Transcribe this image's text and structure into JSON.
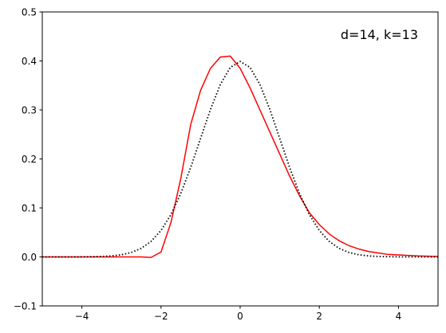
{
  "chart_data": {
    "type": "line",
    "annotation": "d=14, k=13",
    "x": [
      -5,
      -4.75,
      -4.5,
      -4.25,
      -4,
      -3.75,
      -3.5,
      -3.25,
      -3,
      -2.75,
      -2.5,
      -2.25,
      -2,
      -1.75,
      -1.5,
      -1.25,
      -1,
      -0.75,
      -0.5,
      -0.25,
      0,
      0.25,
      0.5,
      0.75,
      1,
      1.25,
      1.5,
      1.75,
      2,
      2.25,
      2.5,
      2.75,
      3,
      3.25,
      3.5,
      3.75,
      4,
      4.25,
      4.5,
      4.75,
      5
    ],
    "series": [
      {
        "color": "#ff0000",
        "style": "solid",
        "values": [
          0,
          0,
          0,
          0,
          0,
          0,
          0,
          0,
          0,
          0,
          0,
          -0.001,
          0.01,
          0.07,
          0.16,
          0.27,
          0.34,
          0.385,
          0.408,
          0.41,
          0.385,
          0.345,
          0.3,
          0.255,
          0.21,
          0.165,
          0.125,
          0.09,
          0.066,
          0.047,
          0.033,
          0.023,
          0.016,
          0.011,
          0.008,
          0.005,
          0.004,
          0.003,
          0.002,
          0.0015,
          0.001
        ]
      },
      {
        "color": "#000000",
        "style": "dotted",
        "values": [
          0,
          0,
          0,
          0,
          0.0001,
          0.0004,
          0.0009,
          0.002,
          0.0044,
          0.0091,
          0.0175,
          0.0317,
          0.054,
          0.0863,
          0.1295,
          0.1826,
          0.242,
          0.3011,
          0.3521,
          0.3867,
          0.3989,
          0.3867,
          0.3521,
          0.3011,
          0.242,
          0.1826,
          0.1295,
          0.0863,
          0.054,
          0.0317,
          0.0175,
          0.0091,
          0.0044,
          0.002,
          0.0009,
          0.0004,
          0.0001,
          0,
          0,
          0,
          0
        ]
      }
    ],
    "xlim": [
      -5,
      5
    ],
    "xticks": [
      {
        "value": -4,
        "label": "−4"
      },
      {
        "value": -2,
        "label": "−2"
      },
      0,
      2,
      4
    ],
    "ylim": [
      -0.1,
      0.5
    ],
    "yticks": [
      {
        "value": -0.1,
        "label": "−0.1"
      },
      {
        "value": 0,
        "label": "0.0"
      },
      0.1,
      0.2,
      0.3,
      0.4,
      0.5
    ]
  }
}
